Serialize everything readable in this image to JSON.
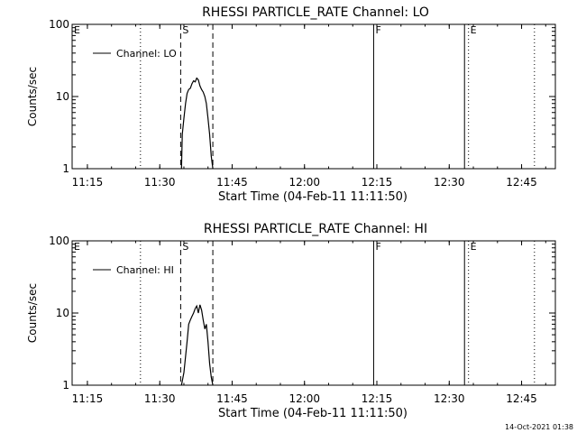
{
  "footer": {
    "timestamp": "14-Oct-2021 01:38"
  },
  "chart_data": [
    {
      "type": "line",
      "title": "RHESSI PARTICLE_RATE Channel: LO",
      "xlabel": "Start Time (04-Feb-11 11:11:50)",
      "ylabel": "Counts/sec",
      "yscale": "log",
      "ylim": [
        1,
        100
      ],
      "xlim": [
        "11:11:50",
        "12:52:00"
      ],
      "xticks": [
        "11:15",
        "11:30",
        "11:45",
        "12:00",
        "12:15",
        "12:30",
        "12:45"
      ],
      "yticks": [
        "1",
        "10",
        "100"
      ],
      "legend": {
        "position": "top-left",
        "label": "Channel: LO"
      },
      "markers": [
        {
          "time": "11:11:50",
          "style": "none",
          "label": "E"
        },
        {
          "time": "11:26:00",
          "style": "dotted",
          "label": ""
        },
        {
          "time": "11:34:20",
          "style": "dashed",
          "label": "S"
        },
        {
          "time": "11:41:00",
          "style": "dashed",
          "label": ""
        },
        {
          "time": "12:14:20",
          "style": "solid",
          "label": "F"
        },
        {
          "time": "12:33:10",
          "style": "solid",
          "label": ""
        },
        {
          "time": "12:34:00",
          "style": "dotted",
          "label": "E"
        },
        {
          "time": "12:47:40",
          "style": "dotted",
          "label": ""
        }
      ],
      "series": [
        {
          "name": "Channel: LO",
          "x": [
            "11:34:30",
            "11:34:40",
            "11:35:00",
            "11:35:20",
            "11:35:40",
            "11:36:00",
            "11:36:20",
            "11:36:40",
            "11:37:00",
            "11:37:20",
            "11:37:40",
            "11:38:00",
            "11:38:20",
            "11:38:40",
            "11:39:00",
            "11:39:20",
            "11:39:40",
            "11:40:00",
            "11:40:20",
            "11:40:40",
            "11:41:00"
          ],
          "y": [
            1.0,
            3.0,
            5.0,
            8.0,
            11.0,
            12.5,
            13.0,
            15.0,
            16.5,
            16.0,
            18.0,
            17.0,
            14.0,
            12.5,
            11.5,
            10.0,
            8.0,
            5.0,
            3.0,
            1.5,
            1.0
          ]
        }
      ]
    },
    {
      "type": "line",
      "title": "RHESSI PARTICLE_RATE Channel: HI",
      "xlabel": "Start Time (04-Feb-11 11:11:50)",
      "ylabel": "Counts/sec",
      "yscale": "log",
      "ylim": [
        1,
        100
      ],
      "xlim": [
        "11:11:50",
        "12:52:00"
      ],
      "xticks": [
        "11:15",
        "11:30",
        "11:45",
        "12:00",
        "12:15",
        "12:30",
        "12:45"
      ],
      "yticks": [
        "1",
        "10",
        "100"
      ],
      "legend": {
        "position": "top-left",
        "label": "Channel: HI"
      },
      "markers": [
        {
          "time": "11:11:50",
          "style": "none",
          "label": "E"
        },
        {
          "time": "11:26:00",
          "style": "dotted",
          "label": ""
        },
        {
          "time": "11:34:20",
          "style": "dashed",
          "label": "S"
        },
        {
          "time": "11:41:00",
          "style": "dashed",
          "label": ""
        },
        {
          "time": "12:14:20",
          "style": "solid",
          "label": "F"
        },
        {
          "time": "12:33:10",
          "style": "solid",
          "label": ""
        },
        {
          "time": "12:34:00",
          "style": "dotted",
          "label": "E"
        },
        {
          "time": "12:47:40",
          "style": "dotted",
          "label": ""
        }
      ],
      "series": [
        {
          "name": "Channel: HI",
          "x": [
            "11:34:30",
            "11:35:00",
            "11:35:40",
            "11:36:00",
            "11:36:20",
            "11:36:40",
            "11:37:00",
            "11:37:20",
            "11:37:40",
            "11:38:00",
            "11:38:20",
            "11:38:40",
            "11:39:00",
            "11:39:20",
            "11:39:40",
            "11:40:00",
            "11:40:20",
            "11:40:40",
            "11:41:00"
          ],
          "y": [
            1.0,
            1.5,
            4.0,
            7.0,
            8.0,
            9.0,
            10.0,
            11.5,
            12.5,
            10.0,
            13.0,
            11.0,
            8.0,
            6.0,
            7.0,
            4.0,
            2.0,
            1.3,
            1.0
          ]
        }
      ]
    }
  ]
}
